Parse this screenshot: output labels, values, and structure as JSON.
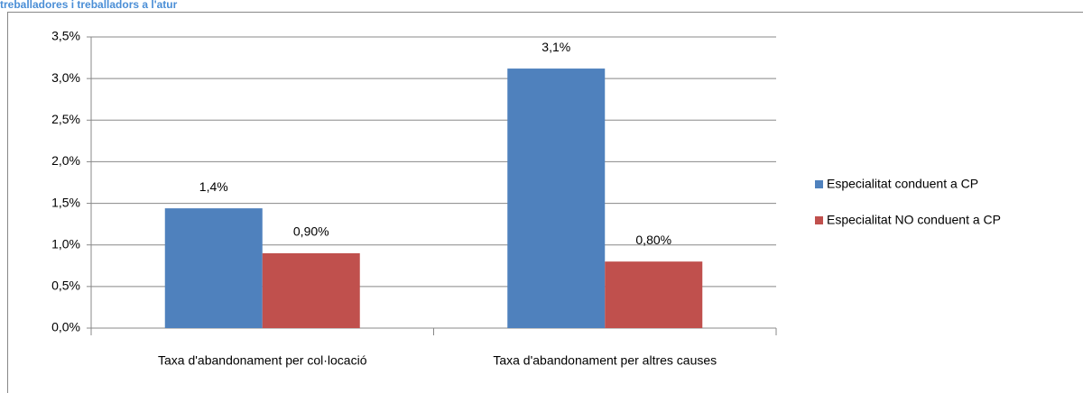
{
  "chart_data": {
    "type": "bar",
    "title": "treballadores i treballadors a l'atur",
    "categories": [
      "Taxa d'abandonament per col·locació",
      "Taxa d'abandonament per altres causes"
    ],
    "series": [
      {
        "name": "Especialitat conduent a CP",
        "color": "#4f81bd",
        "values": [
          1.44,
          3.12
        ],
        "value_labels": [
          "1,4%",
          "3,1%"
        ]
      },
      {
        "name": "Especialitat NO conduent a CP",
        "color": "#c0504d",
        "values": [
          0.9,
          0.8
        ],
        "value_labels": [
          "0,90%",
          "0,80%"
        ]
      }
    ],
    "ylim": [
      0,
      3.5
    ],
    "yticks": [
      {
        "value": 0,
        "label": "0,0%"
      },
      {
        "value": 0.5,
        "label": "0,5%"
      },
      {
        "value": 1,
        "label": "1,0%"
      },
      {
        "value": 1.5,
        "label": "1,5%"
      },
      {
        "value": 2,
        "label": "2,0%"
      },
      {
        "value": 2.5,
        "label": "2,5%"
      },
      {
        "value": 3,
        "label": "3,0%"
      },
      {
        "value": 3.5,
        "label": "3,5%"
      }
    ],
    "grid": true,
    "legend": "right"
  }
}
